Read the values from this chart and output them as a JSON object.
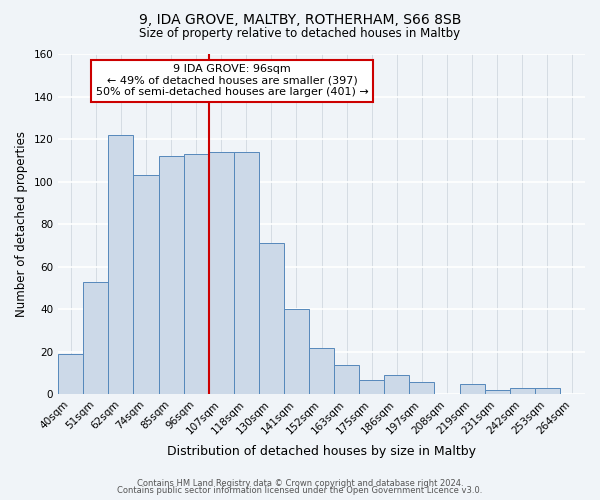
{
  "title": "9, IDA GROVE, MALTBY, ROTHERHAM, S66 8SB",
  "subtitle": "Size of property relative to detached houses in Maltby",
  "xlabel": "Distribution of detached houses by size in Maltby",
  "ylabel": "Number of detached properties",
  "bar_color": "#ccd9e8",
  "bar_edge_color": "#5588bb",
  "background_color": "#f0f4f8",
  "grid_color": "#d0d8e0",
  "categories": [
    "40sqm",
    "51sqm",
    "62sqm",
    "74sqm",
    "85sqm",
    "96sqm",
    "107sqm",
    "118sqm",
    "130sqm",
    "141sqm",
    "152sqm",
    "163sqm",
    "175sqm",
    "186sqm",
    "197sqm",
    "208sqm",
    "219sqm",
    "231sqm",
    "242sqm",
    "253sqm",
    "264sqm"
  ],
  "values": [
    19,
    53,
    122,
    103,
    112,
    113,
    114,
    114,
    71,
    40,
    22,
    14,
    7,
    9,
    6,
    0,
    5,
    2,
    3,
    3,
    0
  ],
  "ylim": [
    0,
    160
  ],
  "yticks": [
    0,
    20,
    40,
    60,
    80,
    100,
    120,
    140,
    160
  ],
  "vline_x_index": 5.5,
  "vline_color": "#cc0000",
  "annotation_title": "9 IDA GROVE: 96sqm",
  "annotation_line1": "← 49% of detached houses are smaller (397)",
  "annotation_line2": "50% of semi-detached houses are larger (401) →",
  "annotation_box_color": "#ffffff",
  "annotation_box_edge": "#cc0000",
  "footer1": "Contains HM Land Registry data © Crown copyright and database right 2024.",
  "footer2": "Contains public sector information licensed under the Open Government Licence v3.0."
}
